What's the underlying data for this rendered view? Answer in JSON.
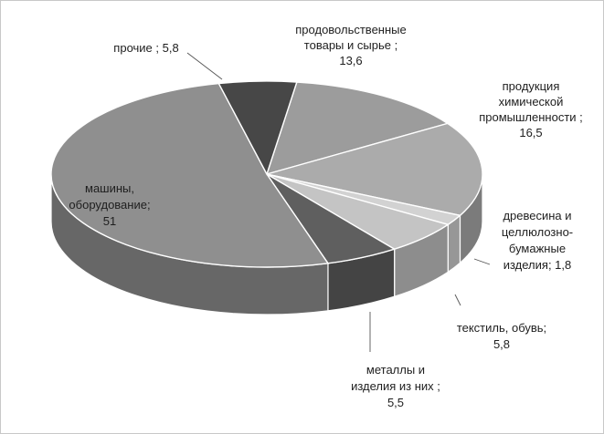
{
  "chart_data": {
    "type": "pie",
    "title": "",
    "unit": "%",
    "slices": [
      {
        "label": "продовольственные товары и сырье",
        "value": 13.6,
        "display": "13,6",
        "lines": [
          "продовольственные",
          "товары и сырье ;",
          "13,6"
        ],
        "color": "#9c9c9c"
      },
      {
        "label": "продукция химической промышленности",
        "value": 16.5,
        "display": "16,5",
        "lines": [
          "продукция",
          "химической",
          "промышленности ;",
          "16,5"
        ],
        "color": "#ababab"
      },
      {
        "label": "древесина и целлюлозно-бумажные изделия",
        "value": 1.8,
        "display": "1,8",
        "lines": [
          "древесина и",
          "целлюлозно-",
          "бумажные",
          "изделия; 1,8"
        ],
        "color": "#d2d2d2"
      },
      {
        "label": "текстиль, обувь",
        "value": 5.8,
        "display": "5,8",
        "lines": [
          "текстиль, обувь;",
          "5,8"
        ],
        "color": "#c4c4c4"
      },
      {
        "label": "металлы и изделия из них",
        "value": 5.5,
        "display": "5,5",
        "lines": [
          "металлы и",
          "изделия из них ;",
          "5,5"
        ],
        "color": "#5f5f5f"
      },
      {
        "label": "машины, оборудование",
        "value": 51,
        "display": "51",
        "lines": [
          "машины,",
          "оборудование;",
          "51"
        ],
        "color": "#8f8f8f"
      },
      {
        "label": "прочие",
        "value": 5.8,
        "display": "5,8",
        "lines": [
          "прочие ; 5,8"
        ],
        "color": "#474747"
      }
    ]
  }
}
